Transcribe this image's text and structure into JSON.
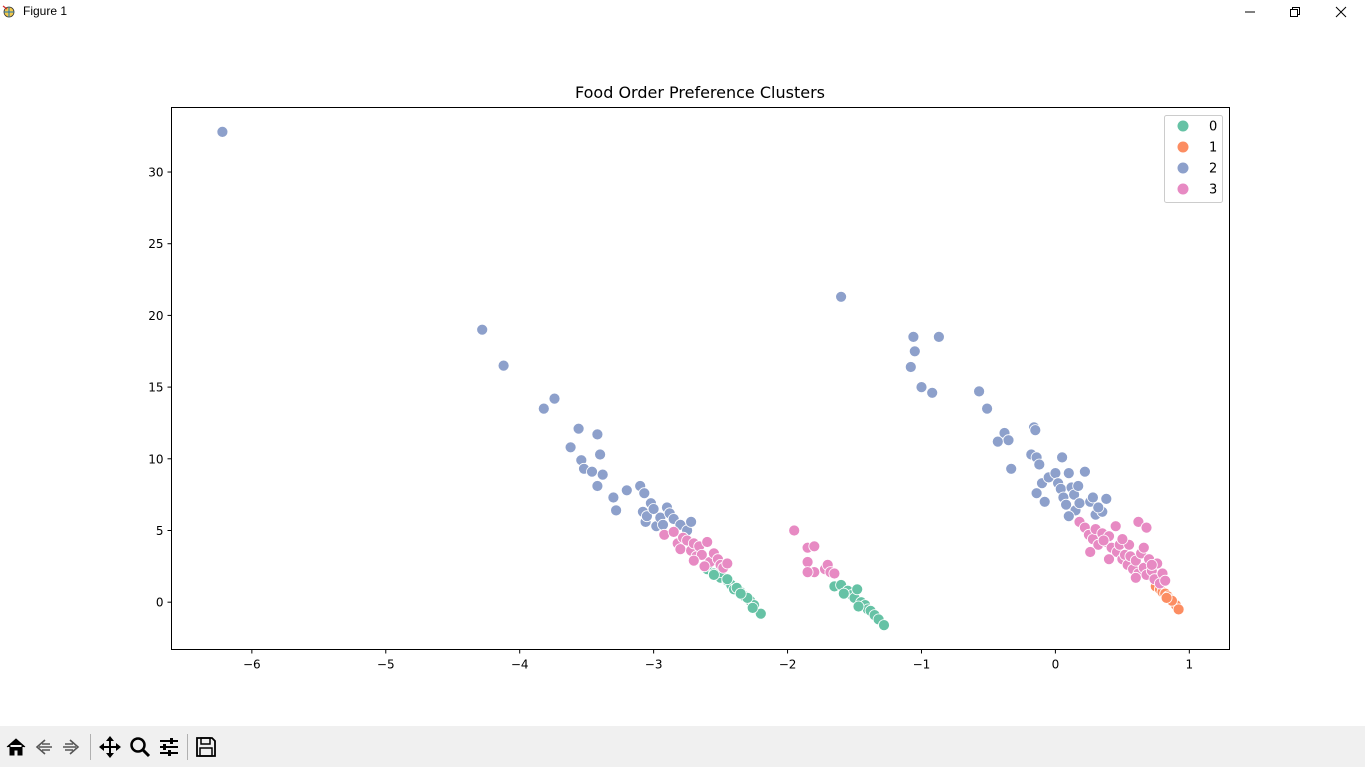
{
  "window": {
    "title": "Figure 1"
  },
  "toolbar": {
    "buttons": [
      "home-icon",
      "back-icon",
      "forward-icon",
      "pan-icon",
      "zoom-icon",
      "configure-subplots-icon",
      "save-icon"
    ]
  },
  "colors": {
    "0": "#66c2a5",
    "1": "#fc8d62",
    "2": "#8da0cb",
    "3": "#e78ac3"
  },
  "chart_data": {
    "type": "scatter",
    "title": "Food Order Preference Clusters",
    "xlabel": "",
    "ylabel": "",
    "xlim": [
      -6.6,
      1.3
    ],
    "ylim": [
      -3.3,
      34.5
    ],
    "xticks": [
      -6,
      -5,
      -4,
      -3,
      -2,
      -1,
      0,
      1
    ],
    "xtick_labels": [
      "−6",
      "−5",
      "−4",
      "−3",
      "−2",
      "−1",
      "0",
      "1"
    ],
    "yticks": [
      0,
      5,
      10,
      15,
      20,
      25,
      30
    ],
    "yticks_labels": [
      "0",
      "5",
      "10",
      "15",
      "20",
      "25",
      "30"
    ],
    "grid": false,
    "legend": {
      "placement": "upper-right",
      "entries": [
        "0",
        "1",
        "2",
        "3"
      ]
    },
    "series": [
      {
        "name": "0",
        "points": [
          [
            -2.6,
            2.3
          ],
          [
            -2.55,
            2.0
          ],
          [
            -2.5,
            1.7
          ],
          [
            -2.45,
            1.5
          ],
          [
            -2.42,
            1.2
          ],
          [
            -2.4,
            0.9
          ],
          [
            -2.35,
            0.7
          ],
          [
            -2.32,
            0.4
          ],
          [
            -2.28,
            0.1
          ],
          [
            -2.25,
            -0.2
          ],
          [
            -2.2,
            -0.8
          ],
          [
            -2.5,
            2.1
          ],
          [
            -2.45,
            1.6
          ],
          [
            -2.38,
            1.0
          ],
          [
            -2.3,
            0.3
          ],
          [
            -2.26,
            -0.4
          ],
          [
            -2.55,
            1.9
          ],
          [
            -2.35,
            0.6
          ],
          [
            -1.65,
            1.1
          ],
          [
            -1.6,
            1.2
          ],
          [
            -1.55,
            0.8
          ],
          [
            -1.52,
            0.5
          ],
          [
            -1.5,
            0.3
          ],
          [
            -1.48,
            0.9
          ],
          [
            -1.45,
            0.0
          ],
          [
            -1.42,
            -0.2
          ],
          [
            -1.4,
            -0.5
          ],
          [
            -1.38,
            -0.6
          ],
          [
            -1.35,
            -0.9
          ],
          [
            -1.32,
            -1.2
          ],
          [
            -1.28,
            -1.6
          ],
          [
            -1.58,
            0.6
          ],
          [
            -1.47,
            -0.3
          ]
        ]
      },
      {
        "name": "1",
        "points": [
          [
            0.75,
            1.1
          ],
          [
            0.78,
            0.9
          ],
          [
            0.8,
            0.7
          ],
          [
            0.82,
            0.6
          ],
          [
            0.84,
            0.4
          ],
          [
            0.86,
            0.2
          ],
          [
            0.88,
            0.0
          ],
          [
            0.9,
            -0.2
          ],
          [
            0.92,
            -0.5
          ],
          [
            0.87,
            0.1
          ],
          [
            0.83,
            0.3
          ]
        ]
      },
      {
        "name": "2",
        "points": [
          [
            -6.22,
            32.8
          ],
          [
            -4.28,
            19.0
          ],
          [
            -4.12,
            16.5
          ],
          [
            -3.82,
            13.5
          ],
          [
            -3.74,
            14.2
          ],
          [
            -3.62,
            10.8
          ],
          [
            -3.56,
            12.1
          ],
          [
            -3.54,
            9.9
          ],
          [
            -3.52,
            9.3
          ],
          [
            -3.46,
            9.1
          ],
          [
            -3.42,
            11.7
          ],
          [
            -3.42,
            8.1
          ],
          [
            -3.4,
            10.3
          ],
          [
            -3.38,
            8.9
          ],
          [
            -3.3,
            7.3
          ],
          [
            -3.28,
            6.4
          ],
          [
            -3.2,
            7.8
          ],
          [
            -3.1,
            8.1
          ],
          [
            -3.08,
            6.3
          ],
          [
            -3.07,
            7.6
          ],
          [
            -3.06,
            5.6
          ],
          [
            -3.05,
            6.0
          ],
          [
            -3.02,
            6.9
          ],
          [
            -3.0,
            6.5
          ],
          [
            -2.98,
            5.3
          ],
          [
            -2.95,
            5.9
          ],
          [
            -2.93,
            5.4
          ],
          [
            -2.9,
            6.6
          ],
          [
            -2.88,
            6.2
          ],
          [
            -2.85,
            5.8
          ],
          [
            -2.8,
            5.4
          ],
          [
            -2.75,
            5.0
          ],
          [
            -2.72,
            5.6
          ],
          [
            -1.6,
            21.3
          ],
          [
            -1.06,
            18.5
          ],
          [
            -1.05,
            17.5
          ],
          [
            -1.08,
            16.4
          ],
          [
            -1.0,
            15.0
          ],
          [
            -0.87,
            18.5
          ],
          [
            -0.92,
            14.6
          ],
          [
            -0.57,
            14.7
          ],
          [
            -0.51,
            13.5
          ],
          [
            -0.38,
            11.8
          ],
          [
            -0.35,
            11.3
          ],
          [
            -0.43,
            11.2
          ],
          [
            -0.33,
            9.3
          ],
          [
            -0.16,
            12.2
          ],
          [
            -0.15,
            12.0
          ],
          [
            -0.18,
            10.3
          ],
          [
            -0.14,
            10.1
          ],
          [
            -0.12,
            9.6
          ],
          [
            -0.14,
            7.6
          ],
          [
            -0.1,
            8.3
          ],
          [
            -0.05,
            8.7
          ],
          [
            -0.08,
            7.0
          ],
          [
            0.0,
            9.0
          ],
          [
            0.02,
            8.3
          ],
          [
            0.04,
            7.9
          ],
          [
            0.05,
            10.1
          ],
          [
            0.06,
            7.3
          ],
          [
            0.08,
            6.8
          ],
          [
            0.1,
            9.0
          ],
          [
            0.12,
            8.0
          ],
          [
            0.14,
            7.5
          ],
          [
            0.15,
            6.4
          ],
          [
            0.17,
            8.1
          ],
          [
            0.18,
            6.9
          ],
          [
            0.1,
            6.0
          ],
          [
            0.22,
            9.1
          ],
          [
            0.26,
            7.0
          ],
          [
            0.28,
            7.3
          ],
          [
            0.3,
            6.1
          ],
          [
            0.35,
            6.3
          ],
          [
            0.38,
            7.2
          ],
          [
            0.32,
            6.6
          ]
        ]
      },
      {
        "name": "3",
        "points": [
          [
            -2.92,
            4.7
          ],
          [
            -2.85,
            4.9
          ],
          [
            -2.82,
            4.1
          ],
          [
            -2.8,
            3.7
          ],
          [
            -2.78,
            4.5
          ],
          [
            -2.75,
            4.3
          ],
          [
            -2.72,
            3.6
          ],
          [
            -2.7,
            4.1
          ],
          [
            -2.68,
            3.2
          ],
          [
            -2.66,
            3.9
          ],
          [
            -2.64,
            3.3
          ],
          [
            -2.6,
            4.2
          ],
          [
            -2.58,
            2.8
          ],
          [
            -2.55,
            3.4
          ],
          [
            -2.52,
            3.0
          ],
          [
            -2.5,
            2.6
          ],
          [
            -2.48,
            2.4
          ],
          [
            -2.45,
            2.7
          ],
          [
            -2.62,
            2.5
          ],
          [
            -2.7,
            2.9
          ],
          [
            -1.95,
            5.0
          ],
          [
            -1.85,
            3.8
          ],
          [
            -1.8,
            3.9
          ],
          [
            -1.85,
            2.8
          ],
          [
            -1.8,
            2.1
          ],
          [
            -1.85,
            2.1
          ],
          [
            -1.72,
            2.3
          ],
          [
            -1.7,
            2.6
          ],
          [
            -1.68,
            2.1
          ],
          [
            -1.65,
            2.0
          ],
          [
            0.18,
            5.6
          ],
          [
            0.22,
            5.2
          ],
          [
            0.25,
            4.7
          ],
          [
            0.28,
            4.4
          ],
          [
            0.3,
            5.1
          ],
          [
            0.32,
            4.0
          ],
          [
            0.35,
            4.8
          ],
          [
            0.38,
            4.2
          ],
          [
            0.4,
            4.6
          ],
          [
            0.42,
            3.8
          ],
          [
            0.45,
            5.3
          ],
          [
            0.46,
            3.5
          ],
          [
            0.48,
            4.0
          ],
          [
            0.5,
            3.0
          ],
          [
            0.52,
            3.3
          ],
          [
            0.54,
            2.6
          ],
          [
            0.55,
            4.0
          ],
          [
            0.56,
            3.2
          ],
          [
            0.58,
            2.3
          ],
          [
            0.6,
            2.9
          ],
          [
            0.62,
            5.6
          ],
          [
            0.62,
            2.0
          ],
          [
            0.64,
            3.4
          ],
          [
            0.66,
            2.4
          ],
          [
            0.68,
            5.2
          ],
          [
            0.68,
            1.9
          ],
          [
            0.7,
            3.0
          ],
          [
            0.72,
            2.2
          ],
          [
            0.74,
            1.6
          ],
          [
            0.76,
            2.7
          ],
          [
            0.78,
            1.3
          ],
          [
            0.8,
            2.0
          ],
          [
            0.82,
            1.5
          ],
          [
            0.26,
            3.5
          ],
          [
            0.4,
            3.0
          ],
          [
            0.6,
            1.7
          ],
          [
            0.66,
            3.8
          ],
          [
            0.5,
            4.4
          ],
          [
            0.36,
            4.3
          ],
          [
            0.72,
            2.6
          ]
        ]
      }
    ]
  }
}
